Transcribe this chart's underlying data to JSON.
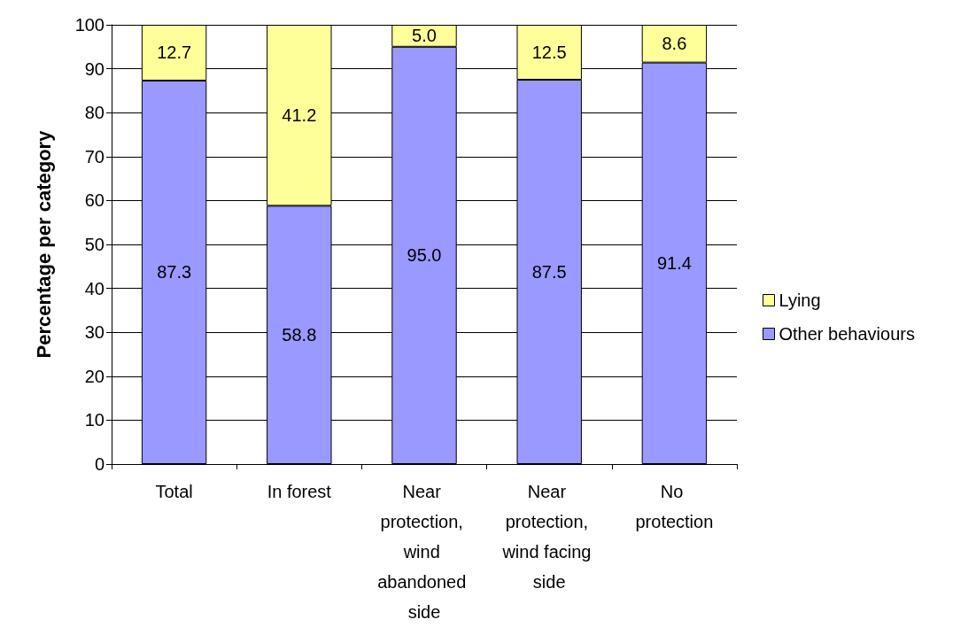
{
  "chart_data": {
    "type": "bar",
    "stacked": true,
    "ylabel": "Percentage per category",
    "categories": [
      "Total",
      "In forest",
      "Near protection, wind abandoned side",
      "Near protection, wind facing side",
      "No protection"
    ],
    "series": [
      {
        "name": "Other behaviours",
        "color": "#9999ff",
        "values": [
          87.3,
          58.8,
          95.0,
          87.5,
          91.4
        ],
        "value_labels": [
          "87.3",
          "58.8",
          "95.0",
          "87.5",
          "91.4"
        ]
      },
      {
        "name": "Lying",
        "color": "#ffff99",
        "values": [
          12.7,
          41.2,
          5.0,
          12.5,
          8.6
        ],
        "value_labels": [
          "12.7",
          "41.2",
          "5.0",
          "12.5",
          "8.6"
        ]
      }
    ],
    "ylim": [
      0,
      100
    ],
    "yticks": [
      0,
      10,
      20,
      30,
      40,
      50,
      60,
      70,
      80,
      90,
      100
    ],
    "grid": "y",
    "legend": "right"
  }
}
